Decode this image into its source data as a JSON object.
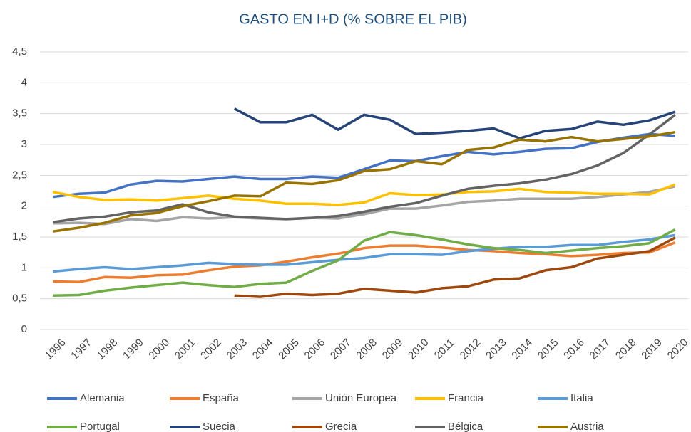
{
  "chart_data": {
    "type": "line",
    "title": "GASTO EN I+D (% SOBRE EL PIB)",
    "categories": [
      "1996",
      "1997",
      "1998",
      "1999",
      "2000",
      "2001",
      "2002",
      "2003",
      "2004",
      "2005",
      "2006",
      "2007",
      "2008",
      "2009",
      "2010",
      "2011",
      "2012",
      "2013",
      "2014",
      "2015",
      "2016",
      "2017",
      "2018",
      "2019",
      "2020"
    ],
    "ylim": [
      0,
      4.5
    ],
    "yticks": [
      0,
      {
        "value": 0.5,
        "label": "0,5"
      },
      1,
      {
        "value": 1.5,
        "label": "1,5"
      },
      2,
      {
        "value": 2.5,
        "label": "2,5"
      },
      3,
      {
        "value": 3.5,
        "label": "3,5"
      },
      4,
      {
        "value": 4.5,
        "label": "4,5"
      }
    ],
    "grid": true,
    "series": [
      {
        "name": "Alemania",
        "color": "#4472c4",
        "values": [
          2.15,
          2.2,
          2.22,
          2.35,
          2.41,
          2.4,
          2.44,
          2.48,
          2.44,
          2.44,
          2.48,
          2.46,
          2.6,
          2.74,
          2.73,
          2.81,
          2.88,
          2.84,
          2.88,
          2.93,
          2.94,
          3.04,
          3.11,
          3.17,
          3.14
        ]
      },
      {
        "name": "España",
        "color": "#ed7d31",
        "values": [
          0.78,
          0.77,
          0.85,
          0.84,
          0.88,
          0.89,
          0.96,
          1.02,
          1.04,
          1.1,
          1.17,
          1.23,
          1.32,
          1.36,
          1.36,
          1.33,
          1.29,
          1.27,
          1.24,
          1.22,
          1.19,
          1.21,
          1.24,
          1.25,
          1.41
        ]
      },
      {
        "name": "Unión Europea",
        "color": "#a5a5a5",
        "values": [
          1.72,
          1.73,
          1.71,
          1.79,
          1.76,
          1.82,
          1.8,
          1.82,
          1.8,
          1.79,
          1.81,
          1.8,
          1.87,
          1.96,
          1.96,
          2.01,
          2.07,
          2.09,
          2.12,
          2.12,
          2.12,
          2.15,
          2.19,
          2.23,
          2.32
        ]
      },
      {
        "name": "Francia",
        "color": "#ffc000",
        "values": [
          2.23,
          2.15,
          2.1,
          2.11,
          2.09,
          2.13,
          2.17,
          2.12,
          2.09,
          2.04,
          2.04,
          2.02,
          2.06,
          2.21,
          2.18,
          2.19,
          2.23,
          2.24,
          2.28,
          2.23,
          2.22,
          2.2,
          2.2,
          2.19,
          2.35
        ]
      },
      {
        "name": "Italia",
        "color": "#5b9bd5",
        "values": [
          0.94,
          0.98,
          1.01,
          0.98,
          1.01,
          1.04,
          1.08,
          1.06,
          1.05,
          1.05,
          1.09,
          1.13,
          1.16,
          1.22,
          1.22,
          1.21,
          1.27,
          1.31,
          1.34,
          1.34,
          1.37,
          1.37,
          1.42,
          1.46,
          1.53
        ]
      },
      {
        "name": "Portugal",
        "color": "#70ad47",
        "values": [
          0.55,
          0.56,
          0.63,
          0.68,
          0.72,
          0.76,
          0.72,
          0.69,
          0.74,
          0.76,
          0.95,
          1.12,
          1.44,
          1.58,
          1.53,
          1.46,
          1.38,
          1.32,
          1.29,
          1.24,
          1.28,
          1.32,
          1.35,
          1.4,
          1.62
        ]
      },
      {
        "name": "Suecia",
        "color": "#264478",
        "values": [
          null,
          null,
          null,
          null,
          null,
          null,
          null,
          3.58,
          3.36,
          3.36,
          3.48,
          3.24,
          3.48,
          3.4,
          3.17,
          3.19,
          3.22,
          3.26,
          3.1,
          3.22,
          3.25,
          3.37,
          3.32,
          3.39,
          3.53
        ]
      },
      {
        "name": "Grecia",
        "color": "#9e480e",
        "values": [
          null,
          null,
          null,
          null,
          null,
          null,
          null,
          0.55,
          0.53,
          0.58,
          0.56,
          0.58,
          0.66,
          0.63,
          0.6,
          0.67,
          0.7,
          0.81,
          0.83,
          0.96,
          1.01,
          1.15,
          1.21,
          1.27,
          1.49
        ]
      },
      {
        "name": "Bélgica",
        "color": "#636363",
        "values": [
          1.74,
          1.8,
          1.83,
          1.9,
          1.93,
          2.03,
          1.9,
          1.83,
          1.81,
          1.79,
          1.81,
          1.84,
          1.91,
          1.99,
          2.05,
          2.17,
          2.28,
          2.33,
          2.37,
          2.43,
          2.52,
          2.66,
          2.86,
          3.16,
          3.48
        ]
      },
      {
        "name": "Austria",
        "color": "#997300",
        "values": [
          1.59,
          1.65,
          1.73,
          1.85,
          1.89,
          2.0,
          2.08,
          2.17,
          2.16,
          2.38,
          2.36,
          2.42,
          2.57,
          2.6,
          2.73,
          2.68,
          2.91,
          2.95,
          3.08,
          3.05,
          3.12,
          3.05,
          3.09,
          3.13,
          3.2
        ]
      }
    ]
  }
}
